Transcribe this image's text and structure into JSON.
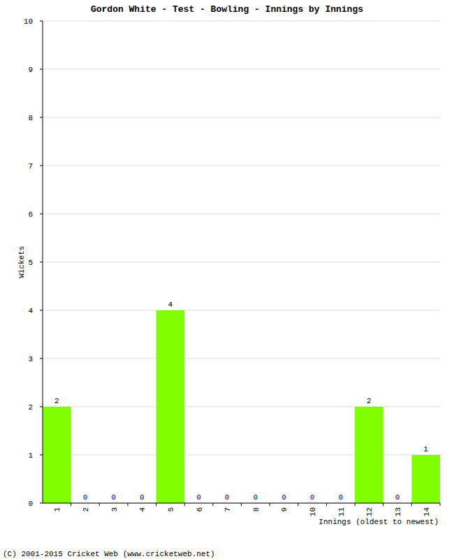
{
  "chart_data": {
    "type": "bar",
    "title": "Gordon White - Test - Bowling - Innings by Innings",
    "categories": [
      "1",
      "2",
      "3",
      "4",
      "5",
      "6",
      "7",
      "8",
      "9",
      "10",
      "11",
      "12",
      "13",
      "14"
    ],
    "values": [
      2,
      0,
      0,
      0,
      4,
      0,
      0,
      0,
      0,
      0,
      0,
      2,
      0,
      1
    ],
    "color": "#80ff00",
    "x_label": "Innings (oldest to newest)",
    "y_label": "Wickets",
    "ylim": [
      0,
      10
    ],
    "yticks": [
      0,
      1,
      2,
      3,
      4,
      5,
      6,
      7,
      8,
      9,
      10
    ],
    "grid": true,
    "data_labels": true,
    "annotations": [
      "(C) 2001-2015 Cricket Web (www.cricketweb.net)"
    ]
  }
}
